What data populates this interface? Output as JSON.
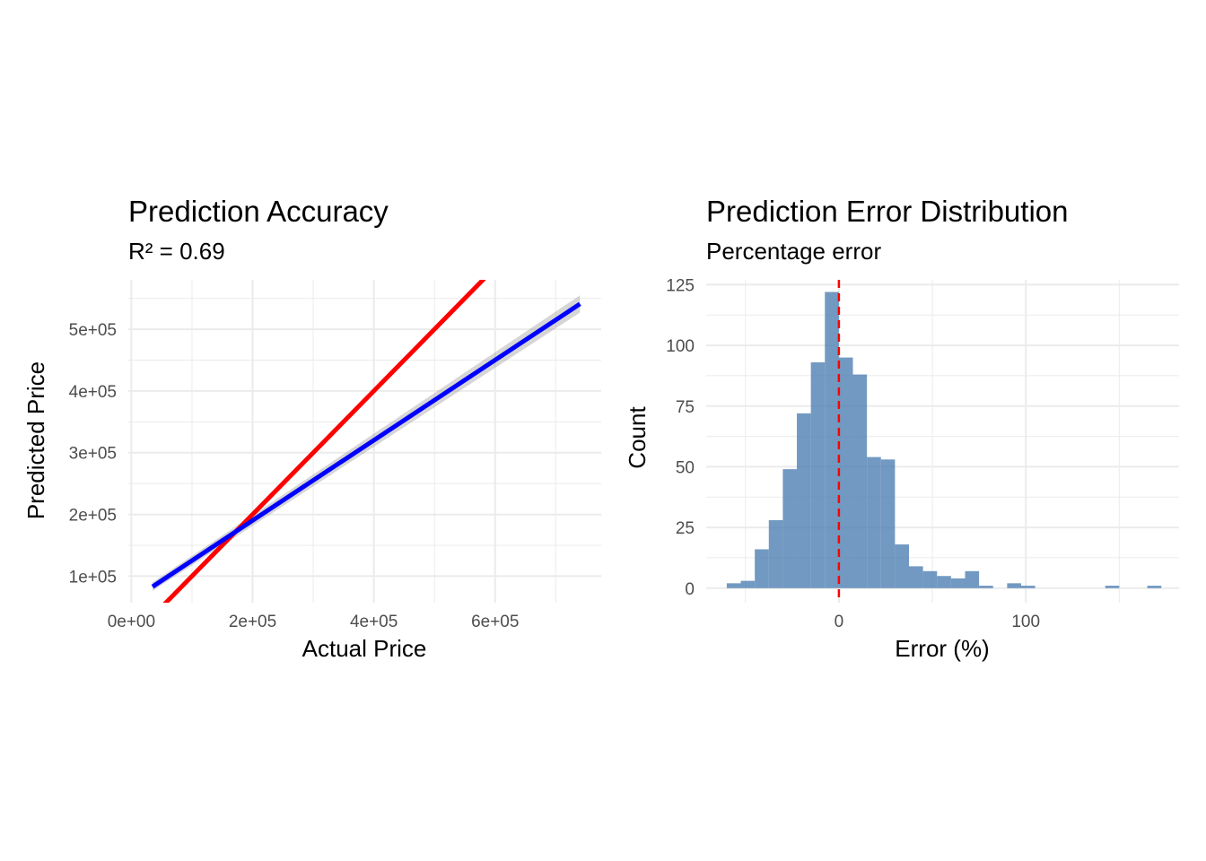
{
  "chart_data": [
    {
      "type": "line",
      "title": "Prediction Accuracy",
      "subtitle": "R² = 0.69",
      "xlabel": "Actual Price",
      "ylabel": "Predicted Price",
      "xlim": [
        -5000,
        775000
      ],
      "ylim": [
        57000,
        580000
      ],
      "x_ticks": [
        0,
        200000,
        400000,
        600000
      ],
      "x_tick_labels": [
        "0e+00",
        "2e+05",
        "4e+05",
        "6e+05"
      ],
      "y_ticks": [
        100000,
        200000,
        300000,
        400000,
        500000
      ],
      "y_tick_labels": [
        "1e+05",
        "2e+05",
        "3e+05",
        "4e+05",
        "5e+05"
      ],
      "grid": true,
      "series": [
        {
          "color": "#ff0000",
          "x": [
            52000,
            582000
          ],
          "y": [
            52000,
            582000
          ]
        },
        {
          "color": "#0000ff",
          "x": [
            35000,
            740000
          ],
          "y": [
            83000,
            541000
          ],
          "band": 7000
        }
      ]
    },
    {
      "type": "bar",
      "title": "Prediction Error Distribution",
      "subtitle": "Percentage error",
      "xlabel": "Error (%)",
      "ylabel": "Count",
      "xlim": [
        -71,
        182
      ],
      "ylim": [
        -6,
        127
      ],
      "x_ticks": [
        0,
        100
      ],
      "x_tick_labels": [
        "0",
        "100"
      ],
      "y_ticks": [
        0,
        25,
        50,
        75,
        100,
        125
      ],
      "y_tick_labels": [
        "0",
        "25",
        "50",
        "75",
        "100",
        "125"
      ],
      "grid": true,
      "bar_color": "#4f7fb3",
      "bins": [
        [
          -60,
          -52.5,
          2
        ],
        [
          -52.5,
          -45,
          3
        ],
        [
          -45,
          -37.5,
          16
        ],
        [
          -37.5,
          -30,
          28
        ],
        [
          -30,
          -22.5,
          49
        ],
        [
          -22.5,
          -15,
          72
        ],
        [
          -15,
          -7.5,
          93
        ],
        [
          -7.5,
          0,
          122
        ],
        [
          0,
          7.5,
          95
        ],
        [
          7.5,
          15,
          88
        ],
        [
          15,
          22.5,
          54
        ],
        [
          22.5,
          30,
          53
        ],
        [
          30,
          37.5,
          18
        ],
        [
          37.5,
          45,
          9
        ],
        [
          45,
          52.5,
          7
        ],
        [
          52.5,
          60,
          5
        ],
        [
          60,
          67.5,
          4
        ],
        [
          67.5,
          75,
          7
        ],
        [
          75,
          82.5,
          1
        ],
        [
          90,
          97.5,
          2
        ],
        [
          97.5,
          105,
          1
        ],
        [
          142.5,
          150,
          1
        ],
        [
          165,
          172.5,
          1
        ]
      ],
      "reference_line": {
        "x": 0,
        "color": "#ff0000"
      }
    }
  ]
}
